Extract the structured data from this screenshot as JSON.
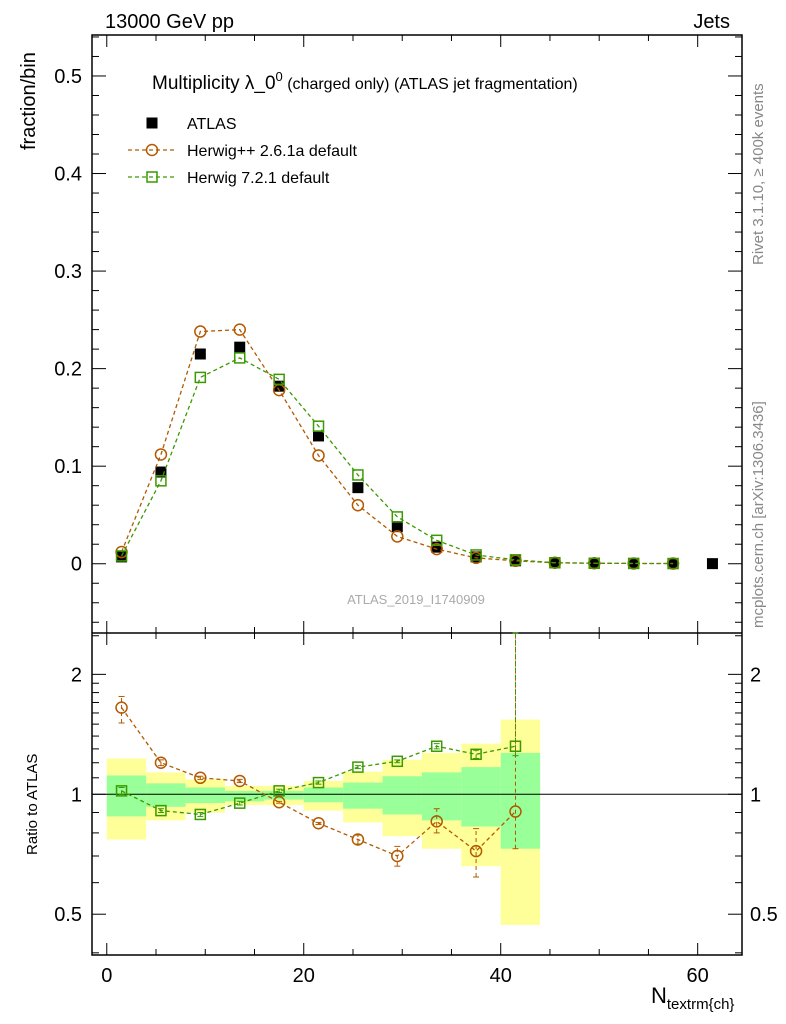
{
  "header": {
    "left": "13000 GeV pp",
    "right": "Jets"
  },
  "side_text": {
    "top": "Rivet 3.1.10, ≥ 400k events",
    "bottom": "mcplots.cern.ch [arXiv:1306.3436]"
  },
  "watermark": "ATLAS_2019_I1740909",
  "chart_data": {
    "type": "scatter",
    "title": "Multiplicity λ_0",
    "title_sup": "0",
    "title_rest": " (charged only) (ATLAS jet fragmentation)",
    "ylabel": "fraction/bin",
    "ratio_ylabel": "Ratio to ATLAS",
    "xlabel": "N",
    "xlabel_sub": "textrm{ch}",
    "xlim": [
      -1.5,
      64.5
    ],
    "ylim": [
      -0.071,
      0.542
    ],
    "ratio_ylim": [
      0.395,
      2.54
    ],
    "xticks": [
      "0",
      "20",
      "40",
      "60"
    ],
    "yticks": [
      "0",
      "0.1",
      "0.2",
      "0.3",
      "0.4",
      "0.5"
    ],
    "ratio_yticks": [
      "0.5",
      "1",
      "2"
    ],
    "x": [
      1.5,
      5.5,
      9.5,
      13.5,
      17.5,
      21.5,
      25.5,
      29.5,
      33.5,
      37.5,
      41.5,
      45.5,
      49.5,
      53.5,
      57.5,
      61.5
    ],
    "series": [
      {
        "name": "ATLAS",
        "color": "#000000",
        "marker": "filled-square",
        "values": [
          0.007,
          0.094,
          0.215,
          0.222,
          0.182,
          0.131,
          0.078,
          0.038,
          0.017,
          0.007,
          0.003,
          0.001,
          0.0005,
          0.0003,
          0.0002,
          0.0001
        ]
      },
      {
        "name": "Herwig++ 2.6.1a default",
        "color": "#b35900",
        "marker": "open-circle",
        "values": [
          0.012,
          0.112,
          0.238,
          0.24,
          0.178,
          0.111,
          0.06,
          0.028,
          0.015,
          0.006,
          0.003,
          0.001,
          0.0005,
          0.0003,
          0.0002
        ],
        "ratio": [
          1.65,
          1.2,
          1.1,
          1.08,
          0.955,
          0.846,
          0.77,
          0.7,
          0.855,
          0.72,
          0.905
        ],
        "ratio_err": [
          [
            1.51,
            1.76
          ],
          [
            1.18,
            1.22
          ],
          [
            1.09,
            1.11
          ],
          [
            1.07,
            1.09
          ],
          [
            0.95,
            0.96
          ],
          [
            0.84,
            0.85
          ],
          [
            0.75,
            0.79
          ],
          [
            0.66,
            0.74
          ],
          [
            0.8,
            0.92
          ],
          [
            0.62,
            0.82
          ],
          [
            0.73,
            3.0
          ]
        ]
      },
      {
        "name": "Herwig 7.2.1 default",
        "color": "#3a9a00",
        "marker": "open-square",
        "values": [
          0.008,
          0.085,
          0.191,
          0.211,
          0.189,
          0.141,
          0.091,
          0.048,
          0.024,
          0.009,
          0.004,
          0.001,
          0.0005,
          0.0003,
          0.0002
        ],
        "ratio": [
          1.02,
          0.91,
          0.89,
          0.95,
          1.02,
          1.07,
          1.17,
          1.21,
          1.32,
          1.26,
          1.32
        ],
        "ratio_err": [
          [
            1.0,
            1.04
          ],
          [
            0.9,
            0.92
          ],
          [
            0.88,
            0.9
          ],
          [
            0.94,
            0.96
          ],
          [
            1.01,
            1.03
          ],
          [
            1.06,
            1.08
          ],
          [
            1.16,
            1.18
          ],
          [
            1.2,
            1.22
          ],
          [
            1.3,
            1.34
          ],
          [
            1.23,
            1.29
          ],
          [
            1.25,
            3.0
          ]
        ]
      }
    ],
    "bands": {
      "edges": [
        0,
        4,
        8,
        12,
        16,
        20,
        24,
        28,
        32,
        36,
        40,
        44
      ],
      "yellow": [
        [
          0.77,
          1.23
        ],
        [
          0.86,
          1.135
        ],
        [
          0.9,
          1.09
        ],
        [
          0.94,
          1.05
        ],
        [
          0.94,
          1.05
        ],
        [
          0.91,
          1.08
        ],
        [
          0.85,
          1.14
        ],
        [
          0.785,
          1.22
        ],
        [
          0.73,
          1.27
        ],
        [
          0.66,
          1.34
        ],
        [
          0.47,
          1.54
        ]
      ],
      "green": [
        [
          0.88,
          1.115
        ],
        [
          0.93,
          1.065
        ],
        [
          0.95,
          1.04
        ],
        [
          0.96,
          1.02
        ],
        [
          0.97,
          1.02
        ],
        [
          0.955,
          1.04
        ],
        [
          0.92,
          1.07
        ],
        [
          0.89,
          1.11
        ],
        [
          0.86,
          1.135
        ],
        [
          0.83,
          1.17
        ],
        [
          0.73,
          1.27
        ]
      ],
      "yellow_color": "#ffff99",
      "green_color": "#99ff99"
    }
  }
}
